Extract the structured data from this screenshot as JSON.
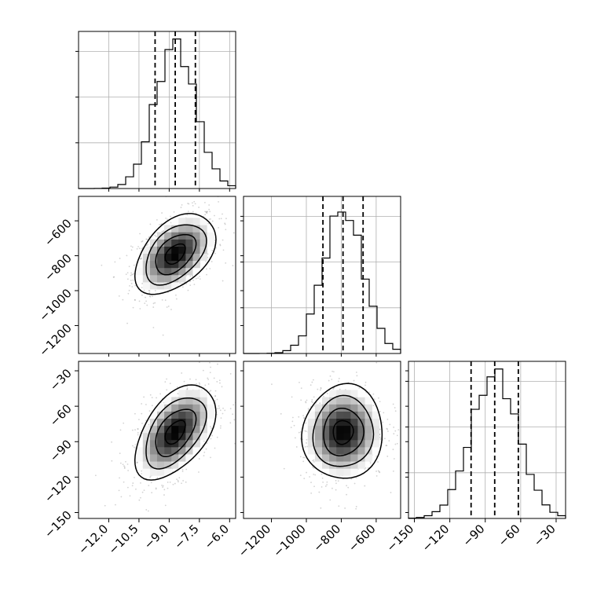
{
  "chart_data": {
    "type": "corner",
    "params": [
      {
        "ticks": [
          -12.0,
          -10.5,
          -9.0,
          -7.5,
          -6.0
        ],
        "tick_labels": [
          "−12.0",
          "−10.5",
          "−9.0",
          "−7.5",
          "−6.0"
        ],
        "range": [
          -13.5,
          -5.7
        ],
        "median": -8.7,
        "lo": -9.7,
        "hi": -7.7,
        "sd": 1.0,
        "shown_ticks": [
          -12.0,
          -10.5,
          -9.0,
          -7.5,
          -6.0
        ]
      },
      {
        "ticks": [
          -1200,
          -1000,
          -800,
          -600
        ],
        "tick_labels": [
          "−1200",
          "−1000",
          "−800",
          "−600"
        ],
        "range": [
          -1360,
          -460
        ],
        "median": -790,
        "lo": -905,
        "hi": -675,
        "sd": 115
      },
      {
        "ticks": [
          -150,
          -120,
          -90,
          -60,
          -30
        ],
        "tick_labels": [
          "−150",
          "−120",
          "−90",
          "−60",
          "−30"
        ],
        "range": [
          -155,
          -22
        ],
        "median": -82,
        "lo": -102,
        "hi": -62,
        "sd": 20
      }
    ],
    "correlations": [
      [
        1,
        0.45,
        0.5
      ],
      [
        0.45,
        1,
        0.05
      ],
      [
        0.5,
        0.05,
        1
      ]
    ],
    "hist_bins": 20,
    "contour_levels": [
      0.5,
      1.0,
      1.5,
      2.0
    ],
    "quantiles": [
      0.16,
      0.5,
      0.84
    ],
    "grid": true,
    "colors": {
      "points": "#808080",
      "density": "#000000",
      "lines": "#000000"
    }
  }
}
